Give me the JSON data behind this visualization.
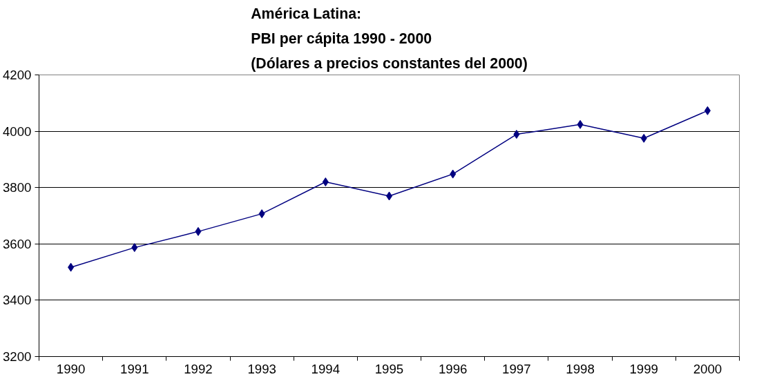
{
  "chart_data": {
    "type": "line",
    "title": "América Latina:\nPBI per cápita 1990 - 2000\n(Dólares a precios constantes del 2000)",
    "categories": [
      "1990",
      "1991",
      "1992",
      "1993",
      "1994",
      "1995",
      "1996",
      "1997",
      "1998",
      "1999",
      "2000"
    ],
    "series": [
      {
        "color": "#000080",
        "values": [
          3517,
          3587,
          3644,
          3707,
          3820,
          3770,
          3848,
          3989,
          4024,
          3975,
          4073
        ]
      }
    ],
    "ylim": [
      3200,
      4200
    ],
    "yticks": [
      3200,
      3400,
      3600,
      3800,
      4000,
      4200
    ],
    "grid": "y",
    "marker": "diamond",
    "line_style": "solid"
  }
}
